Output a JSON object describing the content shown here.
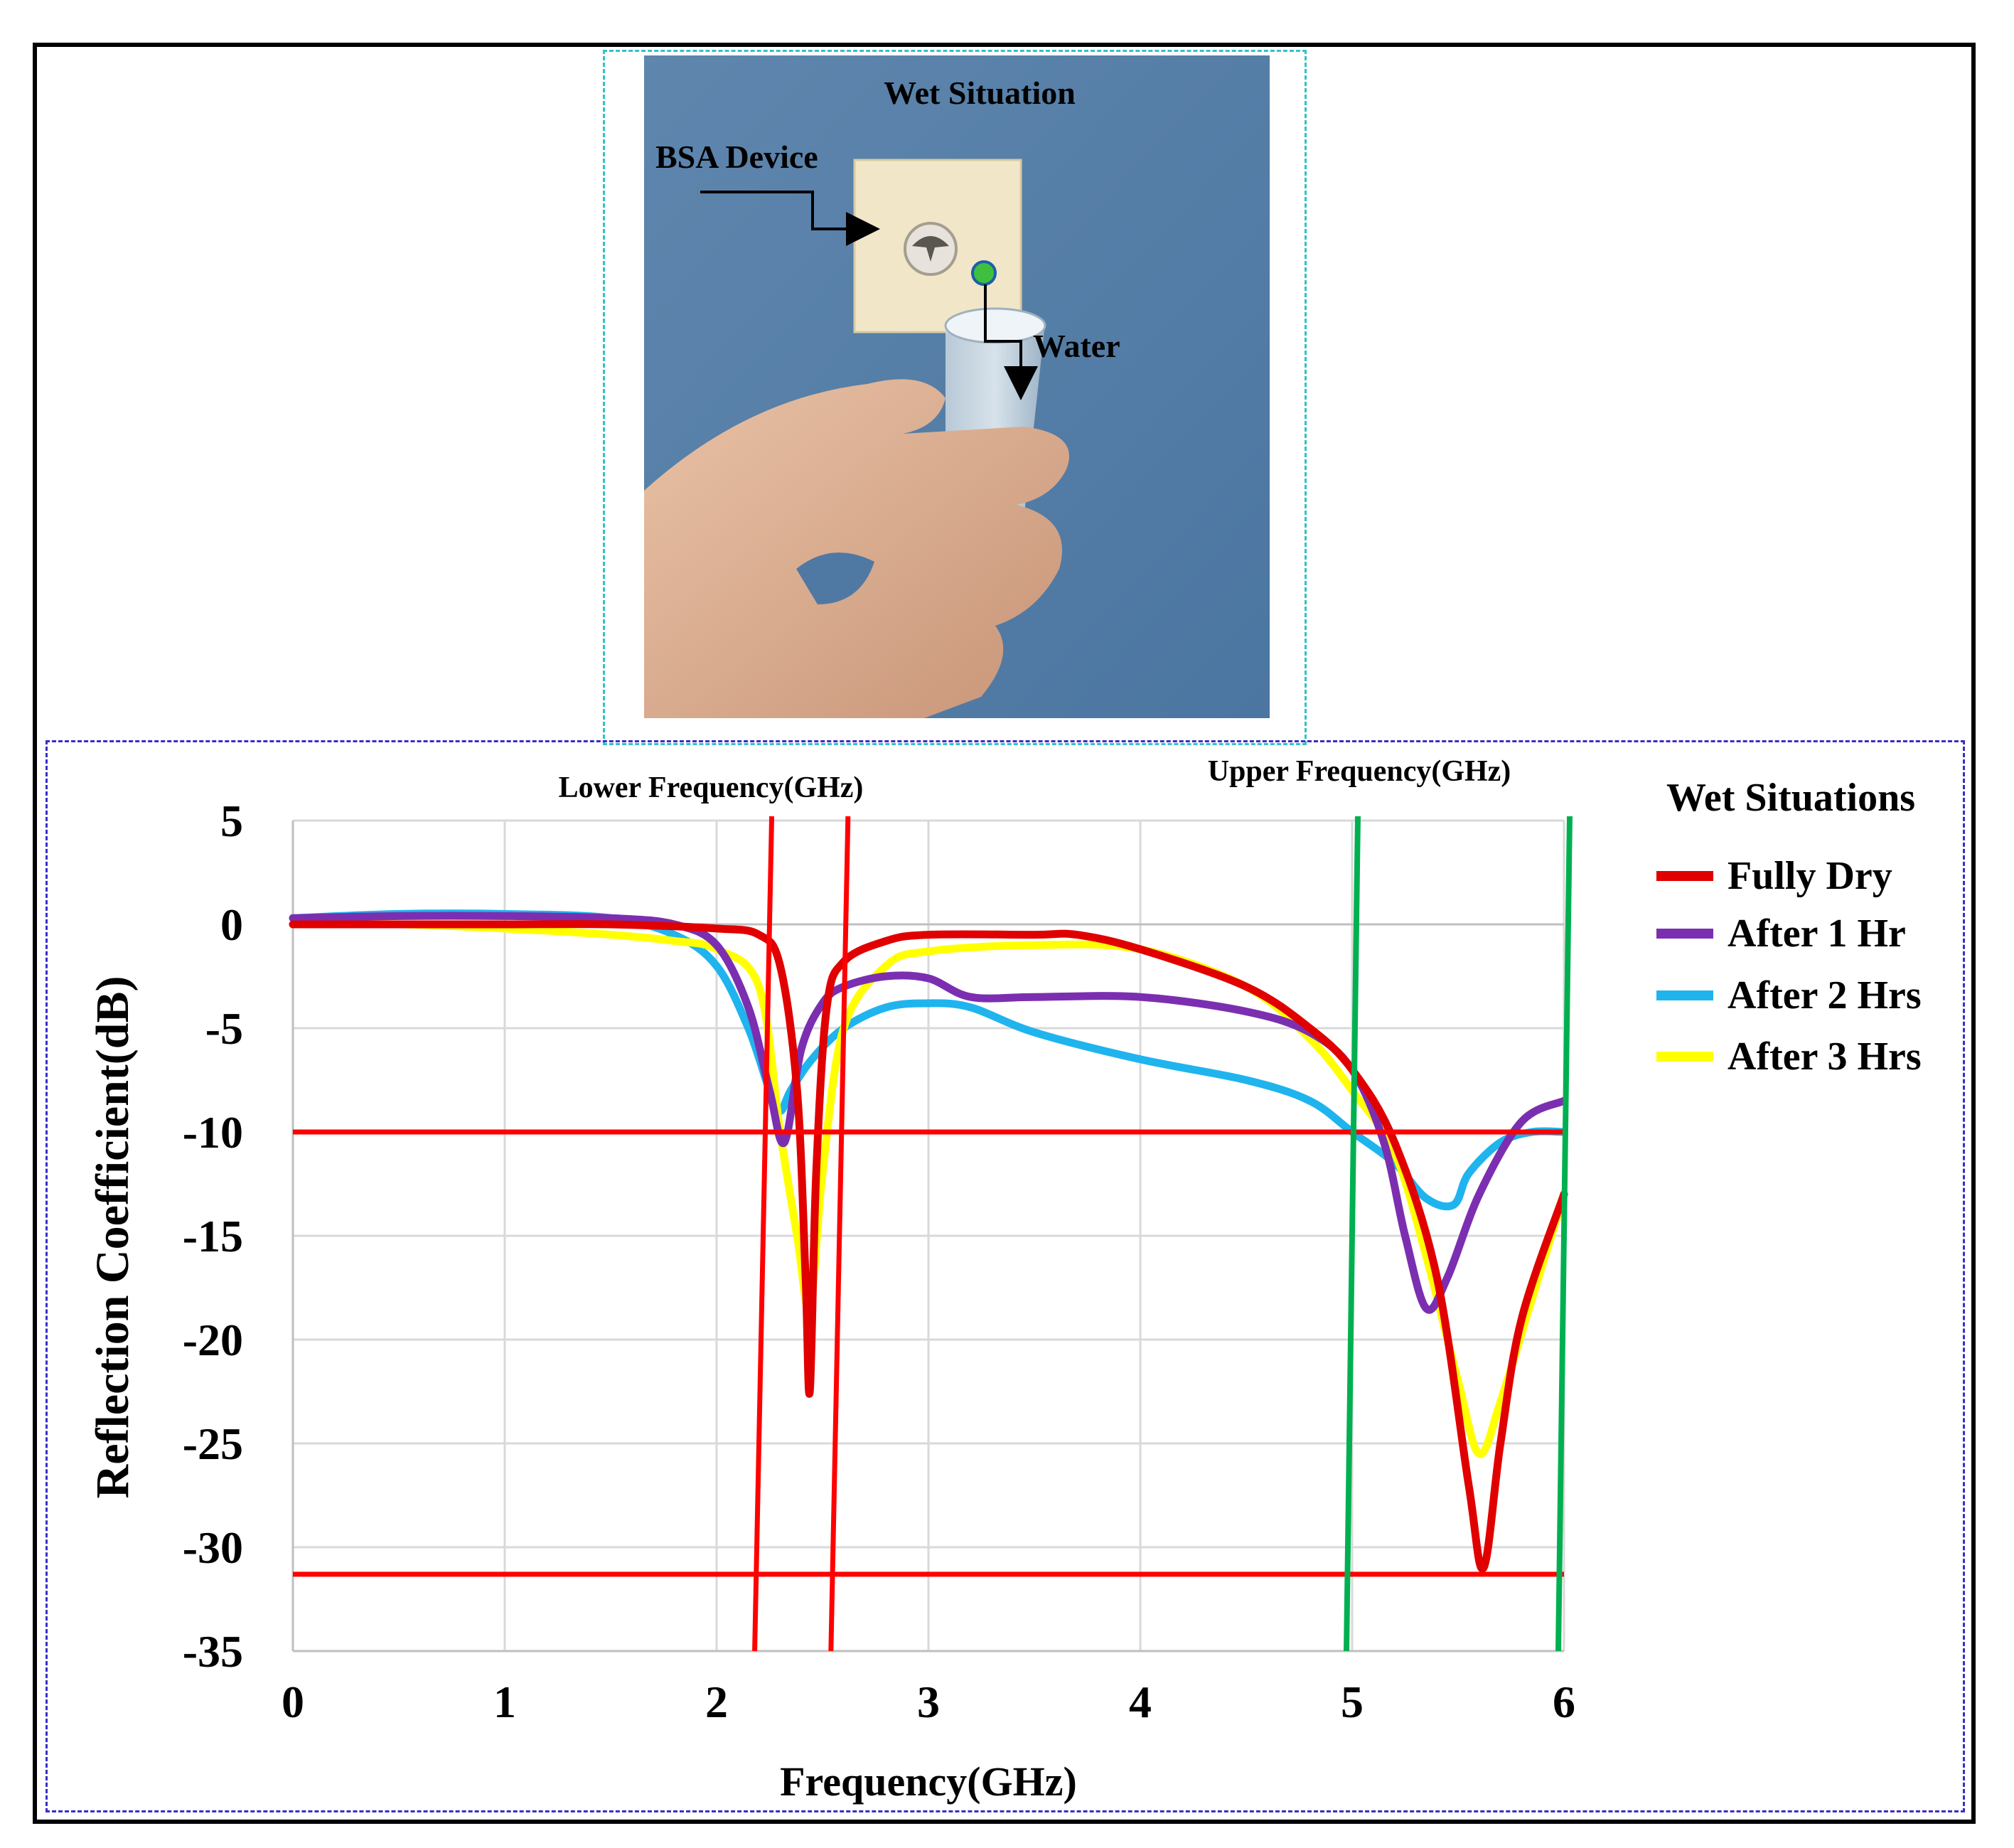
{
  "photo": {
    "title": "Wet Situation",
    "device_label": "BSA Device",
    "water_label": "Water"
  },
  "colors": {
    "fully_dry": "#e00000",
    "after_1_hr": "#7b2fb0",
    "after_2_hrs": "#1fb4ee",
    "after_3_hrs": "#ffff00",
    "marker_red": "#ff0000",
    "marker_green": "#00b050"
  },
  "chart_data": {
    "type": "line",
    "title": "",
    "xlabel": "Frequency(GHz)",
    "ylabel": "Reflection Coefficient(dB)",
    "xlim": [
      0,
      6
    ],
    "ylim": [
      -35,
      5
    ],
    "xticks": [
      "0",
      "1",
      "2",
      "3",
      "4",
      "5",
      "6"
    ],
    "yticks": [
      "5",
      "0",
      "-5",
      "-10",
      "-15",
      "-20",
      "-25",
      "-30",
      "-35"
    ],
    "legend_title": "Wet Situations",
    "legend_position": "right",
    "annotations": {
      "lower_band": "Lower Frequency(GHz)",
      "upper_band": "Upper Frequency(GHz)"
    },
    "reference_lines": {
      "horizontal_db": [
        -10,
        -31.3
      ],
      "vertical_red_ghz": [
        2.22,
        2.58
      ],
      "vertical_green_ghz": [
        5.0,
        6.0
      ]
    },
    "series": [
      {
        "name": "Fully Dry",
        "x": [
          0,
          0.5,
          1,
          1.5,
          2,
          2.2,
          2.3,
          2.38,
          2.42,
          2.44,
          2.47,
          2.52,
          2.6,
          2.8,
          3,
          3.5,
          3.7,
          4,
          4.5,
          4.8,
          5,
          5.2,
          5.4,
          5.55,
          5.62,
          5.7,
          5.8,
          6
        ],
        "y": [
          0,
          0,
          0,
          0,
          -0.2,
          -0.5,
          -2,
          -8,
          -17,
          -22.5,
          -12,
          -4,
          -1.8,
          -0.8,
          -0.5,
          -0.5,
          -0.5,
          -1.2,
          -3,
          -5,
          -7,
          -10.5,
          -17,
          -27,
          -31,
          -25,
          -19,
          -13
        ]
      },
      {
        "name": "After 1 Hr",
        "x": [
          0,
          0.5,
          1,
          1.5,
          1.8,
          2.0,
          2.15,
          2.25,
          2.32,
          2.4,
          2.5,
          2.6,
          2.8,
          3,
          3.2,
          3.5,
          4,
          4.5,
          4.8,
          5,
          5.15,
          5.25,
          5.35,
          5.45,
          5.6,
          5.8,
          6
        ],
        "y": [
          0.3,
          0.4,
          0.4,
          0.3,
          0,
          -1,
          -4,
          -8,
          -10.5,
          -6,
          -3.8,
          -3,
          -2.5,
          -2.6,
          -3.5,
          -3.5,
          -3.5,
          -4.2,
          -5.2,
          -7,
          -10.5,
          -15,
          -18.5,
          -17,
          -13,
          -9.5,
          -8.5
        ]
      },
      {
        "name": "After 2 Hrs",
        "x": [
          0,
          0.5,
          1,
          1.5,
          1.8,
          2.0,
          2.15,
          2.25,
          2.3,
          2.35,
          2.45,
          2.6,
          2.8,
          3,
          3.2,
          3.5,
          4,
          4.5,
          4.8,
          5,
          5.2,
          5.35,
          5.48,
          5.55,
          5.7,
          5.85,
          6
        ],
        "y": [
          0.3,
          0.5,
          0.5,
          0.3,
          -0.5,
          -2,
          -5,
          -8,
          -9,
          -8,
          -6.5,
          -5,
          -4,
          -3.8,
          -4,
          -5.2,
          -6.5,
          -7.5,
          -8.5,
          -10,
          -11.5,
          -13.2,
          -13.5,
          -12,
          -10.5,
          -10,
          -10
        ]
      },
      {
        "name": "After 3 Hrs",
        "x": [
          0,
          0.5,
          1,
          1.5,
          1.8,
          2.0,
          2.2,
          2.3,
          2.38,
          2.44,
          2.5,
          2.6,
          2.8,
          3,
          3.5,
          4,
          4.5,
          4.8,
          5,
          5.2,
          5.35,
          5.5,
          5.6,
          5.7,
          5.85,
          6
        ],
        "y": [
          0,
          0,
          -0.2,
          -0.5,
          -0.8,
          -1.2,
          -3,
          -10,
          -15,
          -18.5,
          -12,
          -5,
          -2,
          -1.3,
          -1,
          -1.2,
          -3,
          -5.5,
          -8,
          -11,
          -16,
          -22,
          -25.5,
          -23,
          -18,
          -13
        ]
      }
    ]
  }
}
